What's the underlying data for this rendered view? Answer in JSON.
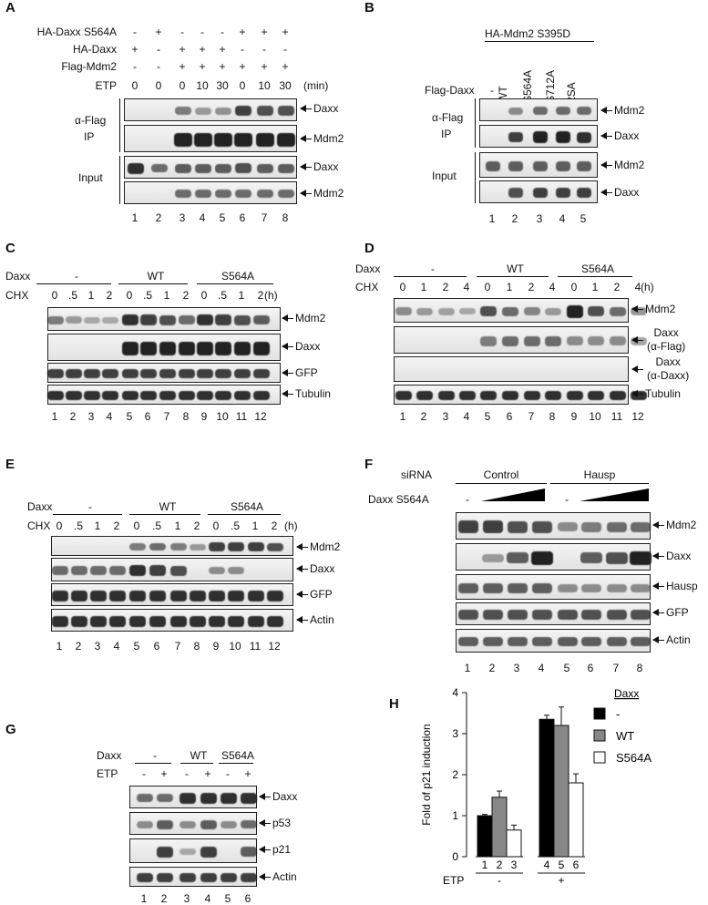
{
  "A": {
    "panel": "A",
    "row_labels": [
      "HA-Daxx S564A",
      "HA-Daxx",
      "Flag-Mdm2",
      "ETP"
    ],
    "row_values": [
      [
        "-",
        "+",
        "-",
        "-",
        "-",
        "+",
        "+",
        "+"
      ],
      [
        "+",
        "-",
        "+",
        "+",
        "+",
        "-",
        "-",
        "-"
      ],
      [
        "-",
        "-",
        "+",
        "+",
        "+",
        "+",
        "+",
        "+"
      ],
      [
        "0",
        "0",
        "0",
        "10",
        "30",
        "0",
        "10",
        "30"
      ]
    ],
    "unit": "(min)",
    "group_labels": [
      "α-Flag",
      "IP",
      "Input"
    ],
    "blot_labels": [
      "Daxx",
      "Mdm2",
      "Daxx",
      "Mdm2"
    ],
    "lanes": [
      "1",
      "2",
      "3",
      "4",
      "5",
      "6",
      "7",
      "8"
    ]
  },
  "B": {
    "panel": "B",
    "header": "HA-Mdm2 S395D",
    "row_label": "Flag-Daxx",
    "col_labels": [
      "-",
      "WT",
      "S564A",
      "S712A",
      "2SA"
    ],
    "group_labels": [
      "α-Flag",
      "IP",
      "Input"
    ],
    "blot_labels": [
      "Mdm2",
      "Daxx",
      "Mdm2",
      "Daxx"
    ],
    "lanes": [
      "1",
      "2",
      "3",
      "4",
      "5"
    ]
  },
  "C": {
    "panel": "C",
    "row_labels": [
      "Daxx",
      "CHX"
    ],
    "groups": [
      "-",
      "WT",
      "S564A"
    ],
    "chx": [
      "0",
      ".5",
      "1",
      "2",
      "0",
      ".5",
      "1",
      "2",
      "0",
      ".5",
      "1",
      "2"
    ],
    "unit": "(h)",
    "blot_labels": [
      "Mdm2",
      "Daxx",
      "GFP",
      "Tubulin"
    ],
    "lanes": [
      "1",
      "2",
      "3",
      "4",
      "5",
      "6",
      "7",
      "8",
      "9",
      "10",
      "11",
      "12"
    ]
  },
  "D": {
    "panel": "D",
    "row_labels": [
      "Daxx",
      "CHX"
    ],
    "groups": [
      "-",
      "WT",
      "S564A"
    ],
    "chx": [
      "0",
      "1",
      "2",
      "4",
      "0",
      "1",
      "2",
      "4",
      "0",
      "1",
      "2",
      "4"
    ],
    "unit": "(h)",
    "blot_labels": [
      "Mdm2",
      "Daxx\n(α-Flag)",
      "Daxx\n(α-Daxx)",
      "Tubulin"
    ],
    "lanes": [
      "1",
      "2",
      "3",
      "4",
      "5",
      "6",
      "7",
      "8",
      "9",
      "10",
      "11",
      "12"
    ]
  },
  "E": {
    "panel": "E",
    "row_labels": [
      "Daxx",
      "CHX"
    ],
    "groups": [
      "-",
      "WT",
      "S564A"
    ],
    "chx": [
      "0",
      ".5",
      "1",
      "2",
      "0",
      ".5",
      "1",
      "2",
      "0",
      ".5",
      "1",
      "2"
    ],
    "unit": "(h)",
    "blot_labels": [
      "Mdm2",
      "Daxx",
      "GFP",
      "Actin"
    ],
    "lanes": [
      "1",
      "2",
      "3",
      "4",
      "5",
      "6",
      "7",
      "8",
      "9",
      "10",
      "11",
      "12"
    ]
  },
  "F": {
    "panel": "F",
    "row_labels": [
      "siRNA",
      "Daxx S564A"
    ],
    "groups": [
      "Control",
      "Hausp"
    ],
    "dash": "-",
    "blot_labels": [
      "Mdm2",
      "Daxx",
      "Hausp",
      "GFP",
      "Actin"
    ],
    "lanes": [
      "1",
      "2",
      "3",
      "4",
      "5",
      "6",
      "7",
      "8"
    ]
  },
  "G": {
    "panel": "G",
    "row_labels": [
      "Daxx",
      "ETP"
    ],
    "groups": [
      "-",
      "WT",
      "S564A"
    ],
    "etp": [
      "-",
      "+",
      "-",
      "+",
      "-",
      "+"
    ],
    "blot_labels": [
      "Daxx",
      "p53",
      "p21",
      "Actin"
    ],
    "lanes": [
      "1",
      "2",
      "3",
      "4",
      "5",
      "6"
    ]
  },
  "H": {
    "panel": "H",
    "ylabel": "Fold of p21 induction",
    "legend_title": "Daxx",
    "xrow_label": "ETP",
    "etp_groups": [
      "-",
      "+"
    ]
  },
  "chart_data": {
    "type": "bar",
    "categories": [
      "1",
      "2",
      "3",
      "4",
      "5",
      "6"
    ],
    "series": [
      {
        "name": "-",
        "values": [
          1.0,
          null,
          null,
          3.35,
          null,
          null
        ],
        "color": "#000000"
      },
      {
        "name": "WT",
        "values": [
          null,
          1.45,
          null,
          null,
          3.2,
          null
        ],
        "color": "#888888"
      },
      {
        "name": "S564A",
        "values": [
          null,
          null,
          0.65,
          null,
          null,
          1.8
        ],
        "color": "#ffffff"
      }
    ],
    "errors": [
      0.03,
      0.15,
      0.12,
      0.1,
      0.45,
      0.22
    ],
    "ylabel": "Fold of p21 induction",
    "ylim": [
      0,
      4
    ],
    "yticks": [
      "0",
      "1",
      "2",
      "3",
      "4"
    ],
    "legend_title": "Daxx",
    "legend_position": "top-right"
  }
}
